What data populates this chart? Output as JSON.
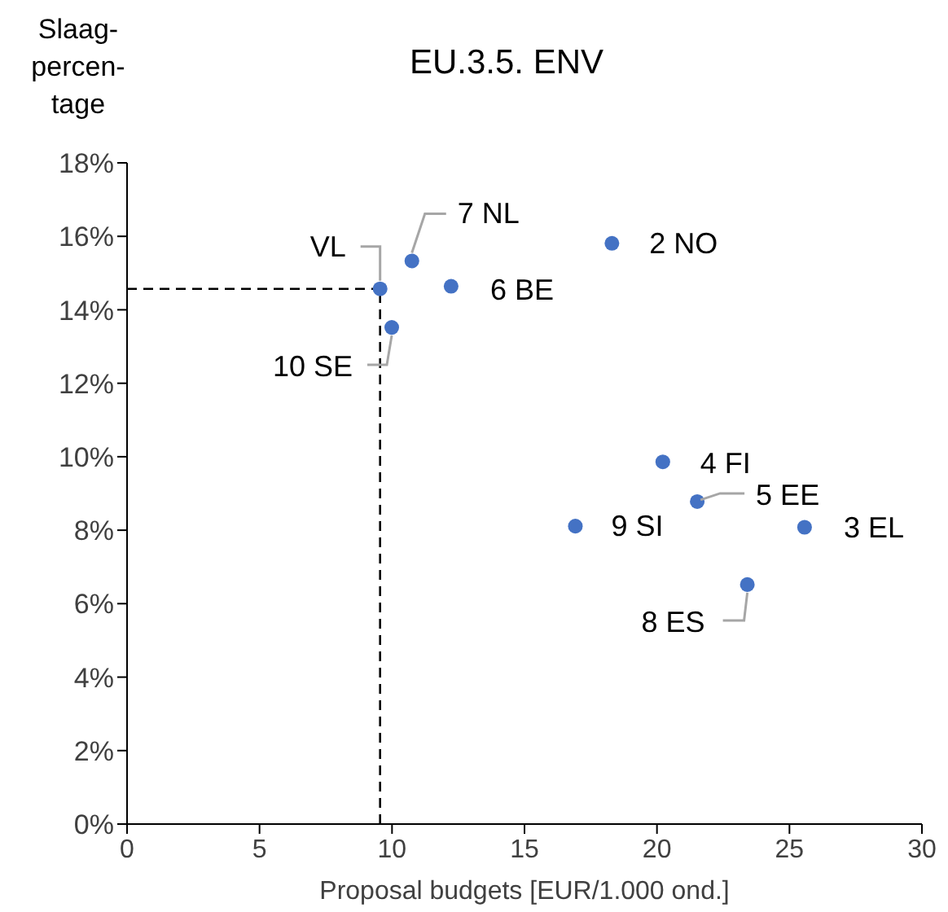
{
  "chart_data": {
    "type": "scatter",
    "title": "EU.3.5. ENV",
    "xlabel": "Proposal budgets [EUR/1.000 ond.]",
    "ylabel": "Slaag-percen-tage",
    "x": [
      9.55,
      10.75,
      12.23,
      18.3,
      9.99,
      20.22,
      21.52,
      16.92,
      25.57,
      23.41
    ],
    "series": [
      {
        "color": "#4472c4",
        "values": [
          14.57,
          15.33,
          14.64,
          15.81,
          13.52,
          9.86,
          8.78,
          8.11,
          8.08,
          6.52
        ]
      }
    ],
    "marker": "circle",
    "grid": false,
    "legend": false,
    "xlim": [
      0,
      30
    ],
    "xticks": [
      0,
      5,
      10,
      15,
      20,
      25,
      30
    ],
    "ylim": [
      0,
      18
    ],
    "yticks": [
      {
        "value": 0,
        "label": "0%"
      },
      {
        "value": 2,
        "label": "2%"
      },
      {
        "value": 4,
        "label": "4%"
      },
      {
        "value": 6,
        "label": "6%"
      },
      {
        "value": 8,
        "label": "8%"
      },
      {
        "value": 10,
        "label": "10%"
      },
      {
        "value": 12,
        "label": "12%"
      },
      {
        "value": 14,
        "label": "14%"
      },
      {
        "value": 16,
        "label": "16%"
      },
      {
        "value": 18,
        "label": "18%"
      }
    ],
    "ref_lines": [
      {
        "axis": "x",
        "value": 9.55,
        "color": "#000000",
        "line_style": "dashed"
      },
      {
        "axis": "y",
        "value": 14.57,
        "color": "#000000",
        "line_style": "dashed"
      }
    ],
    "annotations": [
      {
        "text": "VL",
        "x": 9.55,
        "y": 14.57
      },
      {
        "text": "7 NL",
        "x": 10.75,
        "y": 15.33
      },
      {
        "text": "6 BE",
        "x": 12.23,
        "y": 14.64
      },
      {
        "text": "2 NO",
        "x": 18.3,
        "y": 15.81
      },
      {
        "text": "10 SE",
        "x": 9.99,
        "y": 13.52
      },
      {
        "text": "4 FI",
        "x": 20.22,
        "y": 9.86
      },
      {
        "text": "5 EE",
        "x": 21.52,
        "y": 8.78
      },
      {
        "text": "9 SI",
        "x": 16.92,
        "y": 8.11
      },
      {
        "text": "3 EL",
        "x": 25.57,
        "y": 8.08
      },
      {
        "text": "8 ES",
        "x": 23.41,
        "y": 6.52
      }
    ]
  }
}
